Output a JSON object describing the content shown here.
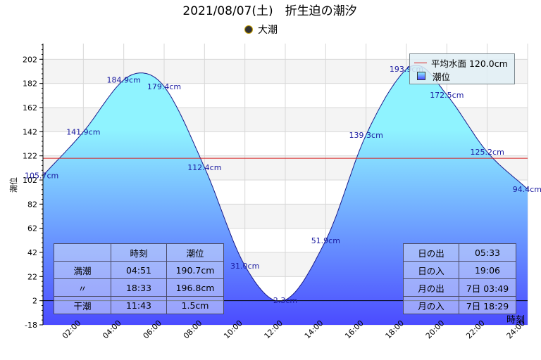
{
  "header": {
    "title": "2021/08/07(土)　折生迫の潮汐",
    "moon_phase": "大潮"
  },
  "colors": {
    "curve_top": "#8ff3ff",
    "curve_bottom": "#4b4bff",
    "mean_line": "#d62020",
    "label": "#1a1aa0"
  },
  "chart_data": {
    "type": "area",
    "title": "2021/08/07(土)　折生迫の潮汐",
    "xlabel": "時刻",
    "ylabel": "潮位",
    "ylim": [
      -18,
      215
    ],
    "xlim": [
      0,
      24
    ],
    "yticks": [
      -18,
      2,
      22,
      42,
      62,
      82,
      102,
      122,
      142,
      162,
      182,
      202
    ],
    "xticks": [
      "02:00",
      "04:00",
      "06:00",
      "08:00",
      "10:00",
      "12:00",
      "14:00",
      "16:00",
      "18:00",
      "20:00",
      "22:00",
      "24:00"
    ],
    "series": [
      {
        "name": "潮位",
        "x": [
          0,
          2,
          4,
          4.85,
          6,
          8,
          10,
          11.72,
          14,
          16,
          18,
          18.55,
          20,
          22,
          24
        ],
        "y": [
          105.7,
          141.9,
          184.9,
          190.7,
          179.4,
          112.4,
          31.0,
          1.5,
          51.9,
          139.3,
          193.9,
          196.8,
          172.5,
          125.2,
          94.4
        ]
      }
    ],
    "mean_level": {
      "name": "平均水面",
      "value": 120.0,
      "label": "平均水面 120.0cm"
    },
    "point_labels": [
      {
        "x": 0,
        "y": 105.7,
        "text": "105.7cm"
      },
      {
        "x": 2,
        "y": 141.9,
        "text": "141.9cm"
      },
      {
        "x": 4,
        "y": 184.9,
        "text": "184.9cm"
      },
      {
        "x": 6,
        "y": 179.4,
        "text": "179.4cm"
      },
      {
        "x": 8,
        "y": 112.4,
        "text": "112.4cm"
      },
      {
        "x": 10,
        "y": 31.0,
        "text": "31.0cm"
      },
      {
        "x": 12,
        "y": 2.3,
        "text": "2.3cm"
      },
      {
        "x": 14,
        "y": 51.9,
        "text": "51.9cm"
      },
      {
        "x": 16,
        "y": 139.3,
        "text": "139.3cm"
      },
      {
        "x": 18,
        "y": 193.9,
        "text": "193.9cm"
      },
      {
        "x": 20,
        "y": 172.5,
        "text": "172.5cm"
      },
      {
        "x": 22,
        "y": 125.2,
        "text": "125.2cm"
      },
      {
        "x": 24,
        "y": 94.4,
        "text": "94.4cm"
      }
    ],
    "legend": [
      "平均水面 120.0cm",
      "潮位"
    ],
    "legend_position": "top-right",
    "grid": true
  },
  "tide_table": {
    "headers": [
      "",
      "時刻",
      "潮位"
    ],
    "rows": [
      [
        "満潮",
        "04:51",
        "190.7cm"
      ],
      [
        "〃",
        "18:33",
        "196.8cm"
      ],
      [
        "干潮",
        "11:43",
        "1.5cm"
      ]
    ]
  },
  "sun_moon_table": {
    "rows": [
      [
        "日の出",
        "05:33"
      ],
      [
        "日の入",
        "19:06"
      ],
      [
        "月の出",
        "7日 03:49"
      ],
      [
        "月の入",
        "7日 18:29"
      ]
    ]
  }
}
